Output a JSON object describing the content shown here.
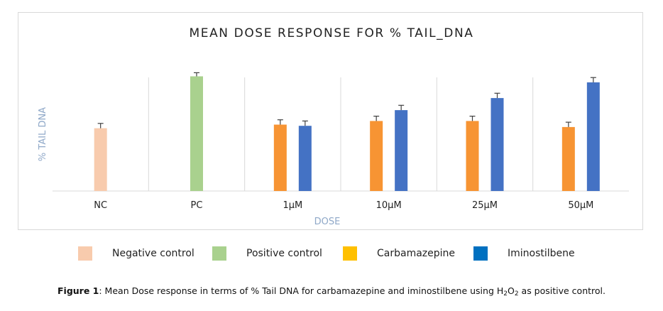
{
  "chart_data": {
    "type": "bar",
    "title": "MEAN DOSE RESPONSE FOR % TAIL_DNA",
    "xlabel": "DOSE",
    "ylabel": "% TAIL DNA",
    "categories": [
      "NC",
      "PC",
      "1µM",
      "10µM",
      "25µM",
      "50µM"
    ],
    "ylim": [
      0,
      100
    ],
    "series": [
      {
        "name": "Negative control",
        "color": "#f8cbad",
        "values": [
          52,
          null,
          null,
          null,
          null,
          null
        ],
        "errors": [
          4,
          null,
          null,
          null,
          null,
          null
        ]
      },
      {
        "name": "Positive control",
        "color": "#a9d18e",
        "values": [
          null,
          95,
          null,
          null,
          null,
          null
        ],
        "errors": [
          null,
          3,
          null,
          null,
          null,
          null
        ]
      },
      {
        "name": "Carbamazepine",
        "color": "#ffc000",
        "bar_color": "#f79433",
        "values": [
          null,
          null,
          55,
          58,
          58,
          53
        ],
        "errors": [
          null,
          null,
          4,
          4,
          4,
          4
        ]
      },
      {
        "name": "Iminostilbene",
        "color": "#0070c0",
        "bar_color": "#4472c4",
        "values": [
          null,
          null,
          54,
          67,
          77,
          90
        ],
        "errors": [
          null,
          null,
          4,
          4,
          4,
          4
        ]
      }
    ],
    "grid": false,
    "legend_position": "bottom"
  },
  "caption": {
    "label": "Figure 1",
    "text_before": ": Mean Dose response in terms of % Tail DNA for carbamazepine and iminostilbene using H",
    "sub1": "2",
    "text_mid": "O",
    "sub2": "2",
    "text_after": " as positive control."
  }
}
